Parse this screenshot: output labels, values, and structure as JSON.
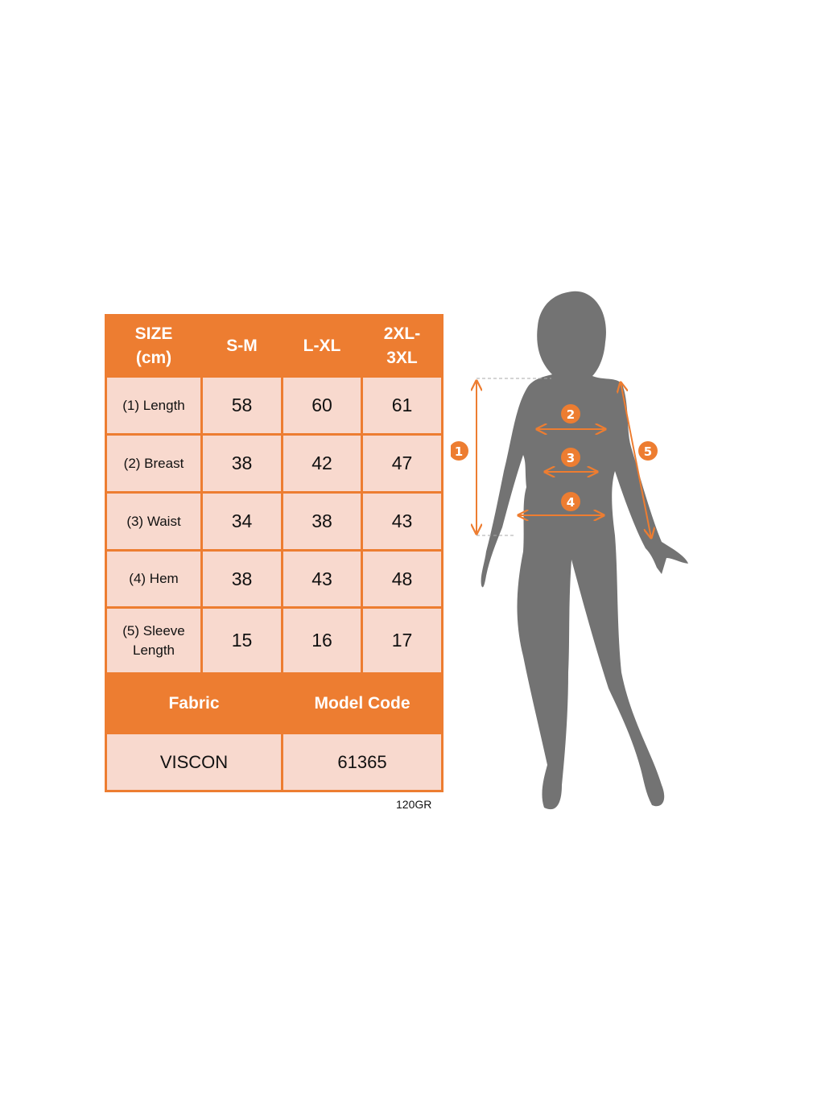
{
  "table": {
    "headers": [
      "SIZE (cm)",
      "S-M",
      "L-XL",
      "2XL-3XL"
    ],
    "header_lines": {
      "size": [
        "SIZE",
        "(cm)"
      ],
      "xxl": [
        "2XL-",
        "3XL"
      ]
    },
    "rows": [
      {
        "label": "(1) Length",
        "values": [
          "58",
          "60",
          "61"
        ]
      },
      {
        "label": "(2) Breast",
        "values": [
          "38",
          "42",
          "47"
        ]
      },
      {
        "label": "(3) Waist",
        "values": [
          "34",
          "38",
          "43"
        ]
      },
      {
        "label": "(4) Hem",
        "values": [
          "38",
          "43",
          "48"
        ]
      },
      {
        "label_lines": [
          "(5) Sleeve",
          "Length"
        ],
        "values": [
          "15",
          "16",
          "17"
        ]
      }
    ],
    "fabric_label": "Fabric",
    "model_code_label": "Model Code",
    "fabric_value": "VISCON",
    "model_code_value": "61365"
  },
  "weight_note": "120GR",
  "figure": {
    "markers": [
      "1",
      "2",
      "3",
      "4",
      "5"
    ],
    "silhouette_color": "#737373"
  },
  "colors": {
    "accent": "#ED7D31",
    "cell": "#F8D9CE"
  }
}
